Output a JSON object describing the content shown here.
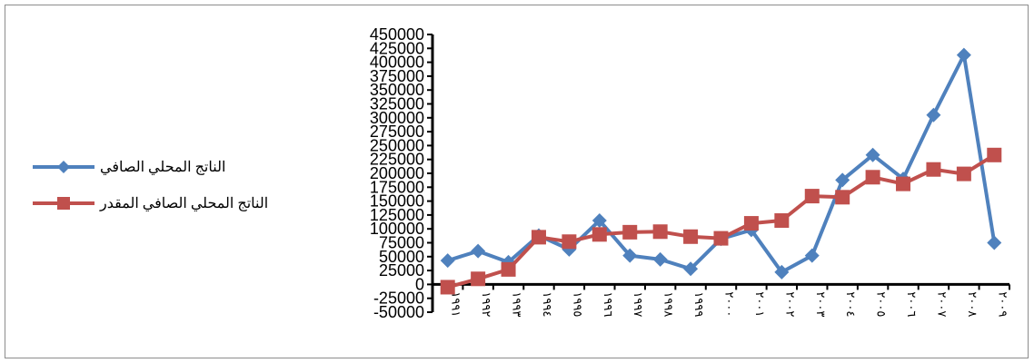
{
  "chart_data": {
    "type": "line",
    "categories": [
      "١٩٩١",
      "١٩٩٢",
      "١٩٩٣",
      "١٩٩٤",
      "١٩٩٥",
      "١٩٩٦",
      "١٩٩٧",
      "١٩٩٨",
      "١٩٩٩",
      "٢٠٠٠",
      "٢٠٠١",
      "٢٠٠٢",
      "٢٠٠٣",
      "٢٠٠٤",
      "٢٠٠٥",
      "٢٠٠٦",
      "٢٠٠٧",
      "٢٠٠٨",
      "٢٠٠٩"
    ],
    "series": [
      {
        "name": "الناتج المحلي الصافي",
        "color": "#4f81bd",
        "marker": "diamond",
        "values": [
          43000,
          60000,
          40000,
          88000,
          63000,
          115000,
          52000,
          45000,
          28000,
          82000,
          98000,
          22000,
          52000,
          188000,
          233000,
          190000,
          305000,
          413000,
          75000
        ]
      },
      {
        "name": "الناتج المحلي الصافي المقدر",
        "color": "#c0504d",
        "marker": "square",
        "values": [
          -5000,
          10000,
          27000,
          85000,
          77000,
          90000,
          94000,
          95000,
          86000,
          83000,
          110000,
          115000,
          159000,
          157000,
          193000,
          181000,
          207000,
          199000,
          233000
        ]
      }
    ],
    "ylim": [
      -50000,
      450000
    ],
    "yticks": [
      "-50000",
      "-25000",
      "0",
      "25000",
      "50000",
      "75000",
      "100000",
      "125000",
      "150000",
      "175000",
      "200000",
      "225000",
      "250000",
      "275000",
      "300000",
      "325000",
      "350000",
      "375000",
      "400000",
      "425000",
      "450000"
    ],
    "legend_position": "left",
    "grid": false
  }
}
